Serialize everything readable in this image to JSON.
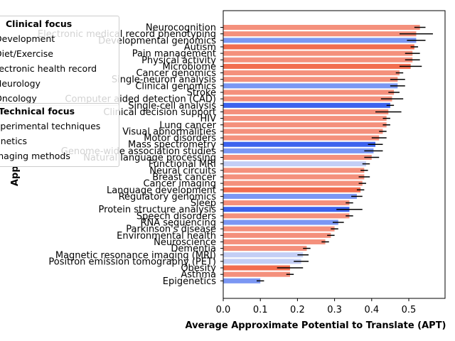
{
  "chart_data": {
    "type": "bar",
    "orientation": "horizontal",
    "xlabel": "Average Approximate Potential to Translate (APT)",
    "ylabel": "App",
    "xlim": [
      0,
      0.6
    ],
    "xticks": [
      "0.0",
      "0.1",
      "0.2",
      "0.3",
      "0.4",
      "0.5"
    ],
    "grid": false,
    "legend": {
      "placement": "upper-left",
      "groups": [
        {
          "title": "Clinical focus",
          "items": [
            "Development",
            "Diet/Exercise",
            "Electronic health record",
            "Neurology",
            "Oncology"
          ]
        },
        {
          "title": "Technical focus",
          "items": [
            "xperimental techniques",
            "enetics",
            "maging methods"
          ]
        }
      ]
    },
    "colors": {
      "clinical": "#f4907c",
      "clinical_strong": "#f26d4f",
      "technical": "#7b97f3",
      "technical_strong": "#3d63ee",
      "technical_light": "#c3cef5",
      "error": "#000000"
    },
    "categories": [
      "Neurocognition",
      "Electronic medical record phenotyping",
      "Developmental genomics",
      "Autism",
      "Pain management",
      "Physical activity",
      "Microbiome",
      "Cancer genomics",
      "Single-neuron analysis",
      "Clinical genomics",
      "Stroke",
      "Computer aided detection (CAD)",
      "Single-cell analysis",
      "Clinical decision support",
      "HIV",
      "Lung cancer",
      "Visual abnormalities",
      "Motor disorders",
      "Mass spectrometry",
      "Genome-wide association studies",
      "Natural language processing",
      "Functional MRI",
      "Neural circuits",
      "Breast cancer",
      "Cancer imaging",
      "Language development",
      "Regulatory genomics",
      "Sleep",
      "Protein structure analysis",
      "Speech disorders",
      "RNA sequencing",
      "Parkinson's disease",
      "Environmental health",
      "Neuroscience",
      "Dementia",
      "Magnetic resonance imaging (MRI)",
      "Positron emission tomography (PET)",
      "Obesity",
      "Asthma",
      "Epigenetics"
    ],
    "values": [
      0.53,
      0.52,
      0.52,
      0.515,
      0.51,
      0.51,
      0.505,
      0.475,
      0.47,
      0.47,
      0.46,
      0.455,
      0.45,
      0.445,
      0.44,
      0.44,
      0.43,
      0.42,
      0.41,
      0.405,
      0.4,
      0.385,
      0.38,
      0.38,
      0.375,
      0.37,
      0.36,
      0.34,
      0.34,
      0.34,
      0.31,
      0.3,
      0.29,
      0.275,
      0.225,
      0.215,
      0.21,
      0.18,
      0.18,
      0.1
    ],
    "errors": [
      0.015,
      0.045,
      0.025,
      0.01,
      0.02,
      0.02,
      0.03,
      0.01,
      0.02,
      0.02,
      0.015,
      0.03,
      0.01,
      0.035,
      0.01,
      0.01,
      0.01,
      0.02,
      0.02,
      0.025,
      0.02,
      0.01,
      0.01,
      0.015,
      0.01,
      0.01,
      0.015,
      0.01,
      0.035,
      0.01,
      0.015,
      0.01,
      0.01,
      0.01,
      0.01,
      0.015,
      0.02,
      0.035,
      0.01,
      0.01
    ],
    "color_keys": [
      "clinical",
      "clinical",
      "technical",
      "clinical_strong",
      "clinical",
      "clinical",
      "clinical_strong",
      "clinical",
      "clinical",
      "technical",
      "clinical",
      "clinical",
      "technical_strong",
      "clinical",
      "clinical",
      "clinical",
      "clinical",
      "clinical",
      "technical_strong",
      "technical",
      "clinical",
      "technical_light",
      "clinical",
      "clinical",
      "clinical",
      "clinical_strong",
      "technical",
      "clinical",
      "technical_strong",
      "clinical",
      "technical",
      "clinical",
      "clinical",
      "clinical",
      "clinical",
      "technical_light",
      "technical_light",
      "clinical_strong",
      "clinical",
      "technical"
    ]
  }
}
